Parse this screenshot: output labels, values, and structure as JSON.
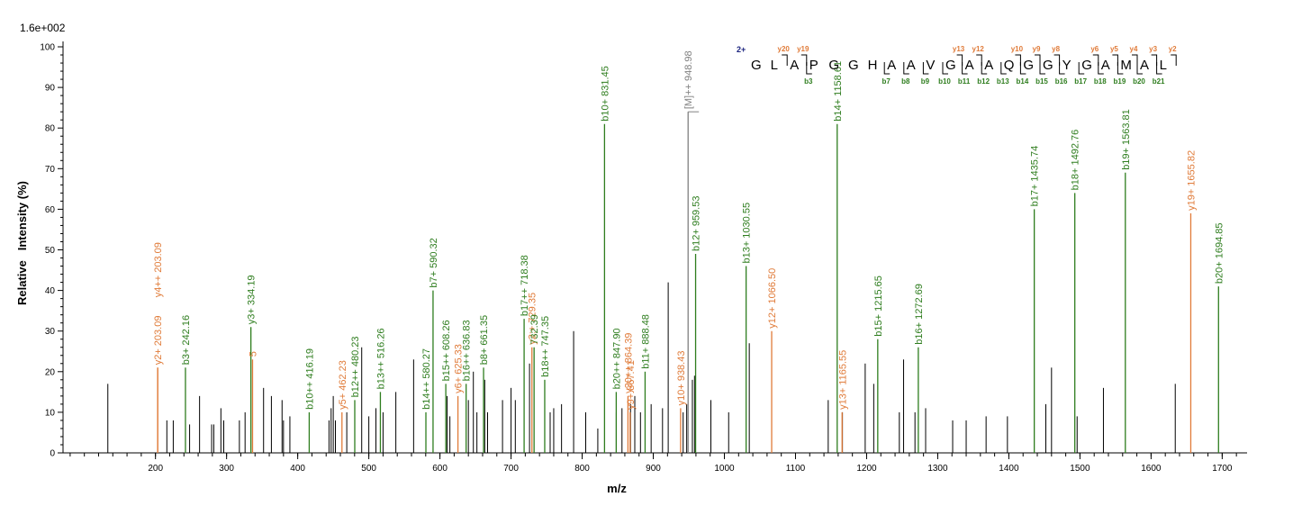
{
  "scale_label": "1.6e+002",
  "colors": {
    "b_ion": "#2e7d1e",
    "y_ion": "#e07b39",
    "precursor": "#808080",
    "unassigned": "#000000"
  },
  "chart_data": {
    "type": "bar",
    "xlabel": "m/z",
    "ylabel": "Relative   Intensity (%)",
    "xlim": [
      70,
      1735
    ],
    "ylim": [
      0,
      102
    ],
    "xticks": [
      200,
      300,
      400,
      500,
      600,
      700,
      800,
      900,
      1000,
      1100,
      1200,
      1300,
      1400,
      1500,
      1600,
      1700
    ],
    "yticks": [
      0,
      10,
      20,
      30,
      40,
      50,
      60,
      70,
      80,
      90,
      100
    ],
    "unlabeled_peaks": [
      [
        133,
        17
      ],
      [
        216,
        8
      ],
      [
        225,
        8
      ],
      [
        248,
        7
      ],
      [
        262,
        14
      ],
      [
        279,
        7
      ],
      [
        282,
        7
      ],
      [
        292,
        11
      ],
      [
        296,
        8
      ],
      [
        318,
        8
      ],
      [
        326,
        10
      ],
      [
        352,
        16
      ],
      [
        363,
        14
      ],
      [
        378,
        13
      ],
      [
        380,
        8
      ],
      [
        389,
        9
      ],
      [
        444,
        8
      ],
      [
        447,
        11
      ],
      [
        450,
        14
      ],
      [
        453,
        8
      ],
      [
        469,
        10
      ],
      [
        490,
        26
      ],
      [
        500,
        9
      ],
      [
        510,
        11
      ],
      [
        520,
        10
      ],
      [
        538,
        15
      ],
      [
        563,
        23
      ],
      [
        610,
        14
      ],
      [
        614,
        9
      ],
      [
        640,
        13
      ],
      [
        647,
        20
      ],
      [
        652,
        10
      ],
      [
        663,
        18
      ],
      [
        667,
        10
      ],
      [
        688,
        13
      ],
      [
        700,
        16
      ],
      [
        706,
        13
      ],
      [
        726,
        22
      ],
      [
        755,
        10
      ],
      [
        760,
        11
      ],
      [
        771,
        12
      ],
      [
        788,
        30
      ],
      [
        805,
        10
      ],
      [
        822,
        6
      ],
      [
        848,
        10
      ],
      [
        856,
        11
      ],
      [
        868,
        12
      ],
      [
        874,
        14
      ],
      [
        882,
        10
      ],
      [
        897,
        12
      ],
      [
        913,
        11
      ],
      [
        921,
        42
      ],
      [
        942,
        10
      ],
      [
        947,
        12
      ],
      [
        955,
        18
      ],
      [
        958,
        19
      ],
      [
        981,
        13
      ],
      [
        1006,
        10
      ],
      [
        1035,
        27
      ],
      [
        1146,
        13
      ],
      [
        1166,
        10
      ],
      [
        1198,
        22
      ],
      [
        1210,
        17
      ],
      [
        1246,
        10
      ],
      [
        1252,
        23
      ],
      [
        1268,
        10
      ],
      [
        1283,
        11
      ],
      [
        1321,
        8
      ],
      [
        1340,
        8
      ],
      [
        1368,
        9
      ],
      [
        1398,
        9
      ],
      [
        1452,
        12
      ],
      [
        1460,
        21
      ],
      [
        1496,
        9
      ],
      [
        1533,
        16
      ],
      [
        1634,
        17
      ]
    ],
    "labeled_peaks": [
      {
        "x": 203.09,
        "y": 21,
        "type": "y",
        "text": "y2+ 203.09"
      },
      {
        "x": 203.09,
        "y": 21,
        "type": "y",
        "text": "y4++ 203.09"
      },
      {
        "x": 242.16,
        "y": 21,
        "type": "b",
        "text": "b3+ 242.16"
      },
      {
        "x": 334.19,
        "y": 31,
        "type": "b",
        "text": "y3+ 334.19"
      },
      {
        "x": 336.5,
        "y": 23,
        "type": "y",
        "text": "5"
      },
      {
        "x": 416.19,
        "y": 10,
        "type": "b",
        "text": "b10++ 416.19"
      },
      {
        "x": 462.23,
        "y": 10,
        "type": "y",
        "text": "y5+ 462.23"
      },
      {
        "x": 480.23,
        "y": 13,
        "type": "b",
        "text": "b12++ 480.23"
      },
      {
        "x": 516.26,
        "y": 15,
        "type": "b",
        "text": "b13++ 516.26"
      },
      {
        "x": 580.27,
        "y": 10,
        "type": "b",
        "text": "b14++ 580.27"
      },
      {
        "x": 590.32,
        "y": 40,
        "type": "b",
        "text": "b7+ 590.32"
      },
      {
        "x": 608.26,
        "y": 17,
        "type": "b",
        "text": "b15++ 608.26"
      },
      {
        "x": 625.33,
        "y": 14,
        "type": "y",
        "text": "y6+ 625.33"
      },
      {
        "x": 636.83,
        "y": 17,
        "type": "b",
        "text": "b16++ 636.83"
      },
      {
        "x": 661.35,
        "y": 21,
        "type": "b",
        "text": "b8+ 661.35"
      },
      {
        "x": 718.38,
        "y": 33,
        "type": "b",
        "text": "b17++ 718.38"
      },
      {
        "x": 729.35,
        "y": 26,
        "type": "y",
        "text": "y2:+ 729.35"
      },
      {
        "x": 732.39,
        "y": 26,
        "type": "b",
        "text": "732.39"
      },
      {
        "x": 747.35,
        "y": 18,
        "type": "b",
        "text": "b18++ 747.35"
      },
      {
        "x": 831.45,
        "y": 81,
        "type": "b",
        "text": "b10+ 831.45"
      },
      {
        "x": 847.9,
        "y": 15,
        "type": "b",
        "text": "b20++ 847.90"
      },
      {
        "x": 864.39,
        "y": 14,
        "type": "y",
        "text": "y20++ 864.39"
      },
      {
        "x": 867.41,
        "y": 10,
        "type": "y",
        "text": "y9+ 867.41"
      },
      {
        "x": 888.48,
        "y": 20,
        "type": "b",
        "text": "b11+ 888.48"
      },
      {
        "x": 938.43,
        "y": 11,
        "type": "y",
        "text": "y10+ 938.43"
      },
      {
        "x": 948.98,
        "y": 84,
        "type": "p",
        "text": "[M]++ 948.98"
      },
      {
        "x": 959.53,
        "y": 49,
        "type": "b",
        "text": "b12+ 959.53"
      },
      {
        "x": 1030.55,
        "y": 46,
        "type": "b",
        "text": "b13+ 1030.55"
      },
      {
        "x": 1066.5,
        "y": 30,
        "type": "y",
        "text": "y12+ 1066.50"
      },
      {
        "x": 1158.61,
        "y": 81,
        "type": "b",
        "text": "b14+ 1158.61"
      },
      {
        "x": 1165.55,
        "y": 10,
        "type": "y",
        "text": "y13+ 1165.55"
      },
      {
        "x": 1215.65,
        "y": 28,
        "type": "b",
        "text": "b15+ 1215.65"
      },
      {
        "x": 1272.69,
        "y": 26,
        "type": "b",
        "text": "b16+ 1272.69"
      },
      {
        "x": 1435.74,
        "y": 60,
        "type": "b",
        "text": "b17+ 1435.74"
      },
      {
        "x": 1492.76,
        "y": 64,
        "type": "b",
        "text": "b18+ 1492.76"
      },
      {
        "x": 1563.81,
        "y": 69,
        "type": "b",
        "text": "b19+ 1563.81"
      },
      {
        "x": 1655.82,
        "y": 59,
        "type": "y",
        "text": "y19+ 1655.82"
      },
      {
        "x": 1694.85,
        "y": 41,
        "type": "b",
        "text": "b20+ 1694.85"
      }
    ],
    "sequence": {
      "charge": "2+",
      "residues": [
        "G",
        "L",
        "A",
        "P",
        "G",
        "G",
        "H",
        "A",
        "A",
        "V",
        "G",
        "A",
        "A",
        "Q",
        "G",
        "G",
        "Y",
        "G",
        "A",
        "M",
        "A",
        "L"
      ],
      "y_ions": [
        {
          "after": 2,
          "text": "y20"
        },
        {
          "after": 3,
          "text": "y19"
        },
        {
          "after": 11,
          "text": "y13"
        },
        {
          "after": 12,
          "text": "y12"
        },
        {
          "after": 14,
          "text": "y10"
        },
        {
          "after": 15,
          "text": "y9"
        },
        {
          "after": 16,
          "text": "y8"
        },
        {
          "after": 18,
          "text": "y6"
        },
        {
          "after": 19,
          "text": "y5"
        },
        {
          "after": 20,
          "text": "y4"
        },
        {
          "after": 21,
          "text": "y3"
        },
        {
          "after": 22,
          "text": "y2"
        }
      ],
      "b_ions": [
        {
          "after": 3,
          "text": "b3"
        },
        {
          "after": 7,
          "text": "b7"
        },
        {
          "after": 8,
          "text": "b8"
        },
        {
          "after": 9,
          "text": "b9"
        },
        {
          "after": 10,
          "text": "b10"
        },
        {
          "after": 11,
          "text": "b11"
        },
        {
          "after": 12,
          "text": "b12"
        },
        {
          "after": 13,
          "text": "b13"
        },
        {
          "after": 14,
          "text": "b14"
        },
        {
          "after": 15,
          "text": "b15"
        },
        {
          "after": 16,
          "text": "b16"
        },
        {
          "after": 17,
          "text": "b17"
        },
        {
          "after": 18,
          "text": "b18"
        },
        {
          "after": 19,
          "text": "b19"
        },
        {
          "after": 20,
          "text": "b20"
        },
        {
          "after": 21,
          "text": "b21"
        }
      ]
    }
  }
}
